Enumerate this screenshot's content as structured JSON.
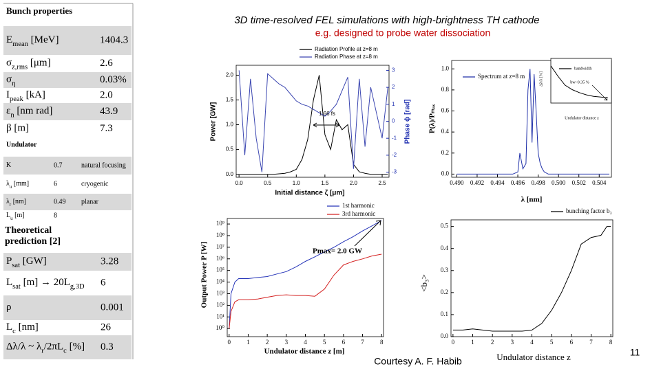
{
  "title": "3D time-resolved FEL simulations with high-brightness TH cathode",
  "subtitle": "e.g. designed to probe water dissociation",
  "credit": "Courtesy A. F. Habib",
  "page_number": "11",
  "table": {
    "bunch": {
      "header": "Bunch properties",
      "rows": [
        {
          "label": [
            {
              "text": "E"
            },
            {
              "sub": "mean"
            },
            {
              "text": " [MeV]"
            }
          ],
          "value": "1404.3"
        },
        {
          "label": [
            {
              "text": "σ"
            },
            {
              "sub": "z,rms"
            },
            {
              "text": " [μm]"
            }
          ],
          "value": "2.6"
        },
        {
          "label": [
            {
              "text": "σ"
            },
            {
              "sub": "η"
            }
          ],
          "value": "0.03%"
        },
        {
          "label": [
            {
              "text": "I"
            },
            {
              "sub": "peak"
            },
            {
              "text": " [kA]"
            }
          ],
          "value": "2.0"
        },
        {
          "label": [
            {
              "text": "ε"
            },
            {
              "sub": "n"
            },
            {
              "text": " [nm rad]"
            }
          ],
          "value": "43.9"
        },
        {
          "label": [
            {
              "text": "β [m]"
            }
          ],
          "value": "7.3"
        }
      ]
    },
    "undulator": {
      "header": "Undulator",
      "rows": [
        {
          "label": [
            {
              "text": "K"
            }
          ],
          "value": "0.7",
          "note": "natural focusing"
        },
        {
          "label": [
            {
              "text": "λ"
            },
            {
              "sub": "u"
            },
            {
              "text": " [mm]"
            }
          ],
          "value": "6",
          "note": "cryogenic"
        },
        {
          "label": [
            {
              "text": "λ"
            },
            {
              "sub": "r"
            },
            {
              "text": " [nm]"
            }
          ],
          "value": "0.49",
          "note": "planar"
        },
        {
          "label": [
            {
              "text": "L"
            },
            {
              "sub": "u"
            },
            {
              "text": " [m]"
            }
          ],
          "value": "8"
        }
      ]
    },
    "theory": {
      "header": "Theoretical prediction [2]",
      "rows": [
        {
          "label": [
            {
              "text": "P"
            },
            {
              "sub": "sat"
            },
            {
              "text": " [GW]"
            }
          ],
          "value": "3.28"
        },
        {
          "label": [
            {
              "text": "L"
            },
            {
              "sub": "sat"
            },
            {
              "text": " [m] → 20L"
            },
            {
              "sub": "g,3D"
            }
          ],
          "value": "6"
        },
        {
          "label": [
            {
              "text": "ρ"
            }
          ],
          "value": "0.001"
        },
        {
          "label": [
            {
              "text": "L"
            },
            {
              "sub": "c"
            },
            {
              "text": " [nm]"
            }
          ],
          "value": "26"
        },
        {
          "label": [
            {
              "text": "Δλ/λ ~ λ"
            },
            {
              "sub": "r"
            },
            {
              "text": "/2πL"
            },
            {
              "sub": "c"
            },
            {
              "text": " [%]"
            }
          ],
          "value": "0.3"
        }
      ]
    }
  },
  "chart_data": [
    {
      "type": "line",
      "xlabel": "Initial distance ζ [μm]",
      "ylabel": "Power [GW]",
      "y2label": "Phase ϕ [rad]",
      "annotation": "1.66 fs",
      "x": [
        0,
        0.1,
        0.2,
        0.3,
        0.4,
        0.5,
        0.6,
        0.7,
        0.8,
        0.9,
        1.0,
        1.1,
        1.2,
        1.3,
        1.4,
        1.5,
        1.6,
        1.7,
        1.8,
        1.9,
        2.0,
        2.1,
        2.2,
        2.3,
        2.4,
        2.5,
        2.6
      ],
      "series": [
        {
          "name": "Radiation Profile at z=8 m",
          "color": "#000000",
          "values": [
            0,
            0,
            0,
            0,
            0,
            0,
            0,
            0.01,
            0.02,
            0.05,
            0.1,
            0.3,
            0.7,
            1.5,
            2.0,
            0.8,
            0.5,
            1.1,
            0.9,
            1.0,
            0.2,
            0.05,
            0.02,
            0,
            0,
            0,
            0
          ]
        },
        {
          "name": "Radiation Phase at z=8 m",
          "color": "#3a45b0",
          "axis": "y2",
          "values": [
            3,
            -2,
            2.5,
            -1,
            -3,
            2.8,
            2.5,
            2.2,
            2.0,
            1.6,
            1.2,
            1.0,
            0.9,
            0.7,
            0.5,
            0.3,
            0.6,
            1.0,
            1.8,
            2.6,
            -2.8,
            2.5,
            -1.5,
            2,
            0.5,
            -1,
            2
          ]
        }
      ],
      "xlim": [
        -0.05,
        2.62
      ],
      "xticks": [
        {
          "value": 0,
          "label": "0.0"
        },
        0.5,
        {
          "value": 1,
          "label": "1.0"
        },
        1.5,
        {
          "value": 2,
          "label": "2.0"
        },
        2.5
      ],
      "ylim": [
        -0.06,
        2.2
      ],
      "yticks": [
        {
          "value": 0,
          "label": "0.0"
        },
        0.5,
        {
          "value": 1,
          "label": "1.0"
        },
        1.5,
        {
          "value": 2,
          "label": "2.0"
        }
      ],
      "y2lim": [
        -3.3,
        3.3
      ],
      "y2ticks": [
        -3,
        -2,
        -1,
        0,
        1,
        2,
        3
      ]
    },
    {
      "type": "line",
      "xlabel": "λ [nm]",
      "ylabel": "P(λ)/Pₘₐₓ",
      "x": [
        0.49,
        0.4955,
        0.496,
        0.4962,
        0.4965,
        0.4968,
        0.497,
        0.4972,
        0.4974,
        0.4976,
        0.4978,
        0.498,
        0.4982,
        0.4984,
        0.4986,
        0.499,
        0.5,
        0.505
      ],
      "series": [
        {
          "name": "Spectrum at z=8 m",
          "color": "#1f2fa8",
          "values": [
            0,
            0,
            0.02,
            0.2,
            0.05,
            0.1,
            0.8,
            1.0,
            0.3,
            0.95,
            0.6,
            0.2,
            0.1,
            0.05,
            0.02,
            0,
            0,
            0
          ]
        }
      ],
      "xlim": [
        0.4895,
        0.5052
      ],
      "xticks": [
        {
          "value": 0.49,
          "label": "0.490"
        },
        0.492,
        0.494,
        0.496,
        0.498,
        {
          "value": 0.5,
          "label": "0.500"
        },
        0.502,
        0.504
      ],
      "ylim": [
        -0.03,
        1.08
      ],
      "yticks": [
        {
          "value": 0,
          "label": "0.0"
        },
        0.2,
        0.4,
        0.6,
        0.8,
        {
          "value": 1,
          "label": "1.0"
        }
      ]
    },
    {
      "type": "line",
      "xlabel": "Undulator distance z",
      "ylabel": "Δλ/λ [%]",
      "annotation": "bw~0.35 %",
      "x": [
        0,
        1,
        2,
        3,
        4,
        5,
        6,
        7,
        8
      ],
      "series": [
        {
          "name": "bandwidth",
          "color": "#000000",
          "values": [
            2.5,
            1.8,
            1.2,
            0.9,
            0.7,
            0.55,
            0.45,
            0.4,
            0.35
          ]
        }
      ],
      "xlim": [
        0,
        8.5
      ],
      "ylim": [
        0,
        3
      ]
    },
    {
      "type": "line",
      "xlabel": "Undulator distance z [m]",
      "ylabel": "Output Power P [W]",
      "annotation": "Pmax= 2.0 GW",
      "yscale": "log",
      "x": [
        0,
        0.1,
        0.3,
        0.5,
        1,
        1.5,
        2,
        2.5,
        3,
        3.5,
        4,
        4.5,
        5,
        5.5,
        6,
        6.5,
        7,
        7.5,
        8
      ],
      "series": [
        {
          "name": "1st harmonic",
          "color": "#2433b8",
          "values": [
            1,
            1000,
            10000,
            20000,
            20000,
            25000,
            30000,
            50000,
            80000,
            200000,
            600000,
            1500000,
            4000000,
            10000000,
            30000000,
            80000000,
            250000000,
            700000000,
            2000000000
          ]
        },
        {
          "name": "3rd harmonic",
          "color": "#d42020",
          "values": [
            1,
            30,
            200,
            300,
            300,
            350,
            500,
            700,
            800,
            700,
            700,
            600,
            2500,
            40000,
            300000,
            600000,
            1000000,
            1800000,
            2500000
          ]
        }
      ],
      "xlim": [
        -0.1,
        8.1
      ],
      "xticks": [
        0,
        1,
        2,
        3,
        4,
        5,
        6,
        7,
        8
      ],
      "ylim": [
        0.2,
        3000000000
      ],
      "yticks": [
        {
          "value": 1,
          "label": "10⁰"
        },
        {
          "value": 10,
          "label": "10¹"
        },
        {
          "value": 100,
          "label": "10²"
        },
        {
          "value": 1000,
          "label": "10³"
        },
        {
          "value": 10000,
          "label": "10⁴"
        },
        {
          "value": 100000,
          "label": "10⁵"
        },
        {
          "value": 1000000,
          "label": "10⁶"
        },
        {
          "value": 10000000,
          "label": "10⁷"
        },
        {
          "value": 100000000,
          "label": "10⁸"
        },
        {
          "value": 1000000000,
          "label": "10⁹"
        }
      ]
    },
    {
      "type": "line",
      "xlabel": "Undulator distance z",
      "ylabel": "<b₃>",
      "x": [
        0,
        0.5,
        1,
        1.5,
        2,
        2.5,
        3,
        3.5,
        4,
        4.5,
        5,
        5.5,
        6,
        6.5,
        7,
        7.5,
        7.8,
        8
      ],
      "series": [
        {
          "name": "bunching factor b₃",
          "color": "#000000",
          "values": [
            0.03,
            0.03,
            0.035,
            0.03,
            0.025,
            0.025,
            0.025,
            0.025,
            0.03,
            0.06,
            0.12,
            0.2,
            0.3,
            0.42,
            0.45,
            0.46,
            0.5,
            0.5
          ]
        }
      ],
      "xlim": [
        -0.1,
        8.1
      ],
      "xticks": [
        0,
        1,
        2,
        3,
        4,
        5,
        6,
        7,
        8
      ],
      "ylim": [
        0,
        0.53
      ],
      "yticks": [
        {
          "value": 0,
          "label": "0.0"
        },
        0.1,
        0.2,
        0.3,
        0.4,
        0.5
      ]
    }
  ]
}
